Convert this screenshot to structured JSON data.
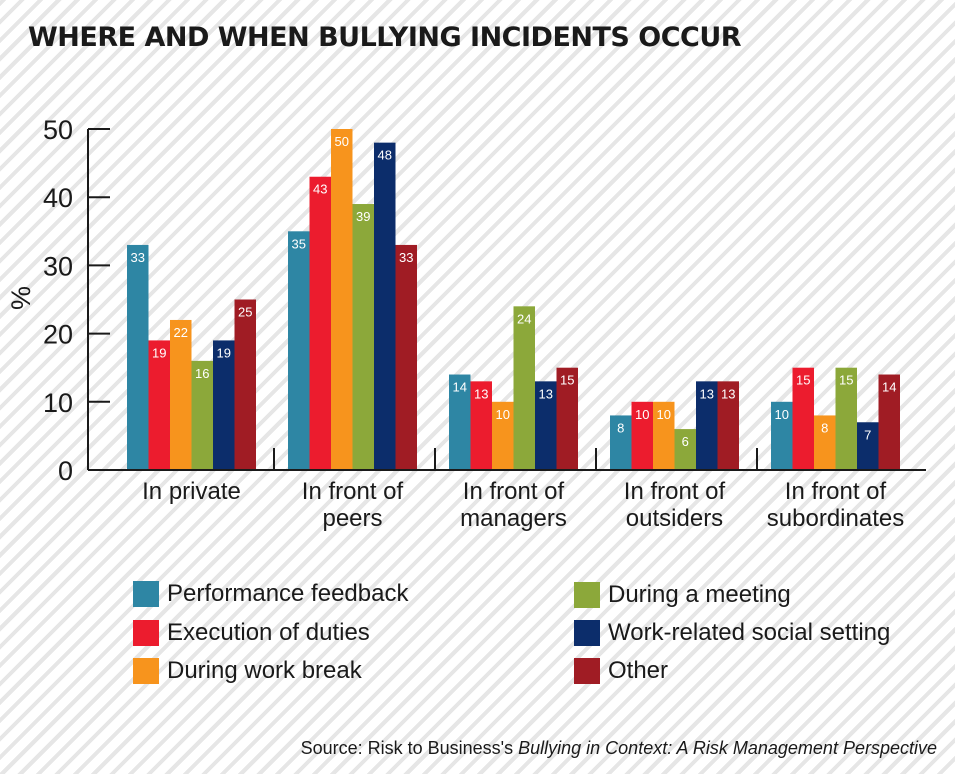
{
  "title": "WHERE AND WHEN BULLYING INCIDENTS OCCUR",
  "source": {
    "prefix": "Source: Risk to Business's ",
    "italic": "Bullying in Context: A Risk Management Perspective"
  },
  "chart_data": {
    "type": "bar",
    "ylabel": "%",
    "ylim": [
      0,
      50
    ],
    "yticks": [
      0,
      10,
      20,
      30,
      40,
      50
    ],
    "grid": false,
    "legend_position": "bottom",
    "categories": [
      [
        "In private"
      ],
      [
        "In front of",
        "peers"
      ],
      [
        "In front of",
        "managers"
      ],
      [
        "In front of",
        "outsiders"
      ],
      [
        "In front of",
        "subordinates"
      ]
    ],
    "series": [
      {
        "name": "Performance feedback",
        "color": "#2e86a4",
        "values": [
          33,
          35,
          14,
          8,
          10
        ]
      },
      {
        "name": "Execution of duties",
        "color": "#ec1c2e",
        "values": [
          19,
          43,
          13,
          10,
          15
        ]
      },
      {
        "name": "During work break",
        "color": "#f7941d",
        "values": [
          22,
          50,
          10,
          10,
          8
        ]
      },
      {
        "name": "During a meeting",
        "color": "#8ca83a",
        "values": [
          16,
          39,
          24,
          6,
          15
        ]
      },
      {
        "name": "Work-related social setting",
        "color": "#0c2d6b",
        "values": [
          19,
          48,
          13,
          13,
          7
        ]
      },
      {
        "name": "Other",
        "color": "#a01c24",
        "values": [
          25,
          33,
          15,
          13,
          14
        ]
      }
    ]
  }
}
